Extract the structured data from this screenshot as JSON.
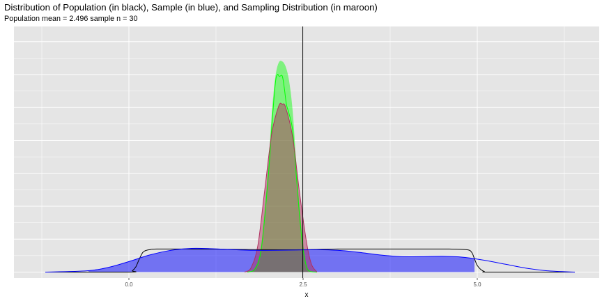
{
  "title": "Distribution of Population (in black), Sample (in blue), and Sampling Distribution (in maroon)",
  "subtitle": "Population mean = 2.496 sample n = 30",
  "chart_data": {
    "type": "area",
    "title": "Distribution of Population (in black), Sample (in blue), and Sampling Distribution (in maroon)",
    "subtitle": "Population mean = 2.496 sample n = 30",
    "xlabel": "x",
    "ylabel": "",
    "xlim": [
      -1.65,
      6.75
    ],
    "ylim": [
      -0.09,
      3.73
    ],
    "x_ticks": [
      0.0,
      2.5,
      5.0
    ],
    "x_tick_labels": [
      "0.0",
      "2.5",
      "5.0"
    ],
    "y_ticks_shown": false,
    "grid": true,
    "vline": {
      "x": 2.496,
      "color": "#000000"
    },
    "colors": {
      "panel": "#e5e5e5",
      "grid": "#ffffff",
      "population_line": "#000000",
      "sample_fill": "#0000ff",
      "sample_line": "#0000ff",
      "sampling_fill": "#00ff00",
      "sampling_line": "#00ff00",
      "maroon_fill": "#b03060",
      "maroon_line": "#b03060"
    },
    "series": [
      {
        "role": "population",
        "geom": "line",
        "x": [
          -1.2,
          0.0,
          0.05,
          0.1,
          0.15,
          0.2,
          0.25,
          0.3,
          0.4,
          1.0,
          2.0,
          2.5,
          3.0,
          4.0,
          4.6,
          4.85,
          4.92,
          4.96,
          5.0,
          5.05,
          5.1,
          5.2,
          6.4
        ],
        "y": [
          0.0,
          0.0,
          0.02,
          0.08,
          0.2,
          0.3,
          0.33,
          0.34,
          0.35,
          0.35,
          0.34,
          0.34,
          0.35,
          0.35,
          0.35,
          0.34,
          0.3,
          0.2,
          0.1,
          0.04,
          0.01,
          0.0,
          0.0
        ]
      },
      {
        "role": "sample",
        "geom": "area",
        "x": [
          -1.2,
          -0.6,
          -0.3,
          0.0,
          0.3,
          0.6,
          0.9,
          1.2,
          1.5,
          1.8,
          2.1,
          2.4,
          2.7,
          3.0,
          3.3,
          3.6,
          3.9,
          4.2,
          4.5,
          4.8,
          5.1,
          5.4,
          5.7,
          6.0,
          6.4
        ],
        "y": [
          0.0,
          0.02,
          0.07,
          0.16,
          0.26,
          0.33,
          0.36,
          0.355,
          0.34,
          0.33,
          0.33,
          0.335,
          0.34,
          0.33,
          0.3,
          0.26,
          0.235,
          0.235,
          0.24,
          0.225,
          0.18,
          0.12,
          0.06,
          0.02,
          0.0
        ],
        "fill_from": -0.58,
        "fill_to": 4.96
      },
      {
        "role": "sampling",
        "geom": "area",
        "x": [
          1.7,
          1.8,
          1.9,
          2.0,
          2.05,
          2.1,
          2.13,
          2.16,
          2.2,
          2.23,
          2.26,
          2.3,
          2.35,
          2.4,
          2.45,
          2.5,
          2.55,
          2.6,
          2.7
        ],
        "y": [
          0.0,
          0.03,
          0.35,
          1.45,
          2.2,
          2.85,
          3.0,
          2.97,
          2.98,
          2.8,
          2.55,
          2.4,
          2.15,
          1.5,
          0.85,
          0.35,
          0.08,
          0.01,
          0.0
        ],
        "fill_x": [
          1.7,
          1.8,
          1.9,
          2.0,
          2.05,
          2.1,
          2.15,
          2.2,
          2.25,
          2.3,
          2.35,
          2.4,
          2.45,
          2.5,
          2.55,
          2.6,
          2.7
        ],
        "fill_y": [
          0.0,
          0.05,
          0.42,
          1.6,
          2.4,
          2.95,
          3.18,
          3.2,
          3.12,
          2.9,
          2.45,
          1.7,
          1.0,
          0.45,
          0.12,
          0.02,
          0.0
        ]
      },
      {
        "role": "sampling_maroon",
        "geom": "area",
        "x": [
          1.66,
          1.75,
          1.85,
          1.95,
          2.05,
          2.15,
          2.2,
          2.25,
          2.35,
          2.45,
          2.55,
          2.62,
          2.7
        ],
        "y": [
          0.0,
          0.06,
          0.4,
          1.25,
          2.1,
          2.52,
          2.55,
          2.5,
          2.05,
          1.2,
          0.45,
          0.12,
          0.0
        ],
        "fill_from": 1.69,
        "fill_to": 2.7
      }
    ]
  }
}
